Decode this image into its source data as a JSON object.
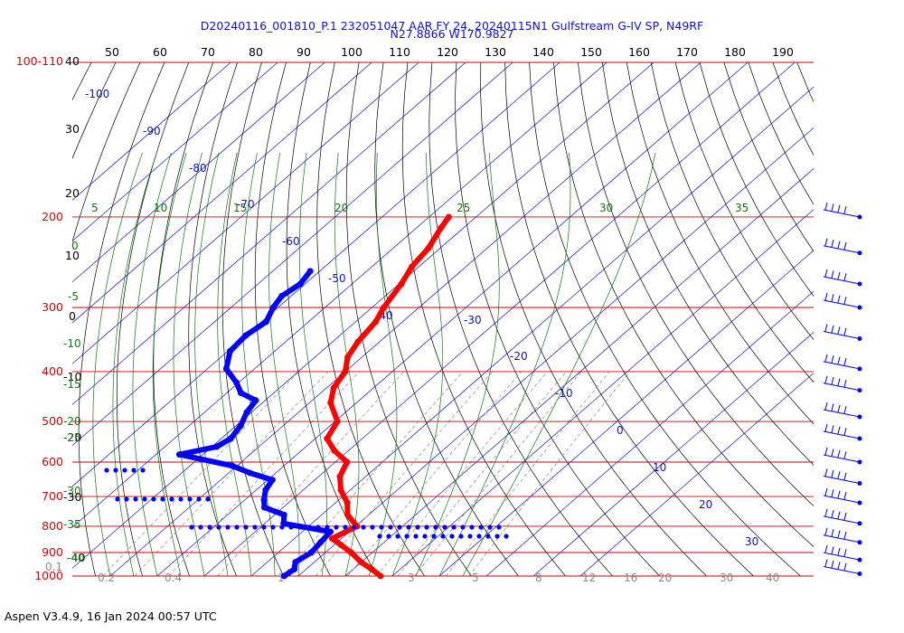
{
  "title_line1": "D20240116_001810_P.1 232051047 AAR FY 24, 20240115N1 Gulfstream G-IV SP, N49RF",
  "title_line2": "N27.8866 W170.9827",
  "footer": "Aspen V3.4.9, 16 Jan 2024  00:57 UTC",
  "colors": {
    "temperature": "#ff0000",
    "dewpoint": "#0000ff",
    "isobar": "#cc0000",
    "isotherm": "#1010cc",
    "dry_adiabat": "#000000",
    "moist_adiabat": "#0a7a0a",
    "mixing_ratio": "#8a8a8a"
  },
  "chart_data": {
    "type": "scatter",
    "chart_kind": "skew-T log-p diagram",
    "y_axis": {
      "scale": "log",
      "pressure_ticks": [
        {
          "value": 100,
          "label": "100-110"
        },
        {
          "value": 200,
          "label": "200"
        },
        {
          "value": 300,
          "label": "300"
        },
        {
          "value": 400,
          "label": "400"
        },
        {
          "value": 500,
          "label": "500"
        },
        {
          "value": 600,
          "label": "600"
        },
        {
          "value": 700,
          "label": "700"
        },
        {
          "value": 800,
          "label": "800"
        },
        {
          "value": 900,
          "label": "900"
        },
        {
          "value": 1000,
          "label": "1000"
        }
      ],
      "pressure_range": [
        110,
        1000
      ]
    },
    "potential_temperature_ticks": [
      "50",
      "60",
      "70",
      "80",
      "90",
      "100",
      "110",
      "120",
      "130",
      "140",
      "150",
      "160",
      "170",
      "180",
      "190"
    ],
    "left_scale_labels": [
      "40",
      "30",
      "20",
      "10",
      "0",
      "-10",
      "-20",
      "-30",
      "-40"
    ],
    "isotherm_labels": [
      "-100",
      "-90",
      "-80",
      "-70",
      "-60",
      "-50",
      "-40",
      "-30",
      "-20",
      "-10",
      "0",
      "10",
      "20",
      "30"
    ],
    "moist_adiabat_labels": [
      "5",
      "10",
      "15",
      "20",
      "25",
      "30",
      "35",
      "0",
      "-5",
      "-10",
      "-15",
      "-20",
      "-25",
      "-30",
      "-35",
      "-40"
    ],
    "mixing_ratio_labels": [
      "0.1",
      "0.2",
      "0.4",
      "1",
      "3",
      "5",
      "8",
      "12",
      "16",
      "20",
      "30",
      "40"
    ],
    "series": [
      {
        "key": "temperature",
        "points": [
          {
            "p": 200,
            "t": -55.8
          },
          {
            "p": 210,
            "t": -54.8
          },
          {
            "p": 230,
            "t": -52.5
          },
          {
            "p": 250,
            "t": -51.5
          },
          {
            "p": 270,
            "t": -49.5
          },
          {
            "p": 300,
            "t": -47.5
          },
          {
            "p": 320,
            "t": -45.7
          },
          {
            "p": 350,
            "t": -44.6
          },
          {
            "p": 375,
            "t": -43.0
          },
          {
            "p": 400,
            "t": -40.0
          },
          {
            "p": 430,
            "t": -38.5
          },
          {
            "p": 460,
            "t": -35.5
          },
          {
            "p": 500,
            "t": -29.5
          },
          {
            "p": 540,
            "t": -27.5
          },
          {
            "p": 570,
            "t": -23.0
          },
          {
            "p": 600,
            "t": -17.5
          },
          {
            "p": 640,
            "t": -15.5
          },
          {
            "p": 680,
            "t": -12.0
          },
          {
            "p": 720,
            "t": -7.5
          },
          {
            "p": 760,
            "t": -4.5
          },
          {
            "p": 800,
            "t": 0.3
          },
          {
            "p": 845,
            "t": -2.0
          },
          {
            "p": 870,
            "t": 1.5
          },
          {
            "p": 900,
            "t": 5.5
          },
          {
            "p": 940,
            "t": 10.0
          },
          {
            "p": 970,
            "t": 14.0
          },
          {
            "p": 1000,
            "t": 17.5
          }
        ]
      },
      {
        "key": "dewpoint",
        "points": [
          {
            "p": 255,
            "t": -72.0
          },
          {
            "p": 270,
            "t": -71.0
          },
          {
            "p": 285,
            "t": -72.0
          },
          {
            "p": 300,
            "t": -71.0
          },
          {
            "p": 320,
            "t": -69.0
          },
          {
            "p": 340,
            "t": -70.0
          },
          {
            "p": 365,
            "t": -69.5
          },
          {
            "p": 395,
            "t": -66.0
          },
          {
            "p": 420,
            "t": -60.5
          },
          {
            "p": 440,
            "t": -57.0
          },
          {
            "p": 455,
            "t": -52.0
          },
          {
            "p": 480,
            "t": -51.0
          },
          {
            "p": 510,
            "t": -49.0
          },
          {
            "p": 540,
            "t": -48.0
          },
          {
            "p": 560,
            "t": -49.0
          },
          {
            "p": 580,
            "t": -55.0
          },
          {
            "p": 610,
            "t": -41.0
          },
          {
            "p": 630,
            "t": -35.5
          },
          {
            "p": 650,
            "t": -29.0
          },
          {
            "p": 680,
            "t": -28.0
          },
          {
            "p": 710,
            "t": -26.0
          },
          {
            "p": 735,
            "t": -24.0
          },
          {
            "p": 760,
            "t": -18.0
          },
          {
            "p": 790,
            "t": -16.0
          },
          {
            "p": 820,
            "t": -4.0
          },
          {
            "p": 860,
            "t": -3.5
          },
          {
            "p": 900,
            "t": -3.0
          },
          {
            "p": 940,
            "t": -4.0
          },
          {
            "p": 970,
            "t": -2.5
          },
          {
            "p": 1000,
            "t": -3.0
          }
        ]
      }
    ],
    "wind_barb_levels": [
      200,
      235,
      270,
      300,
      345,
      395,
      435,
      490,
      540,
      600,
      660,
      720,
      790,
      860,
      930,
      990
    ]
  }
}
